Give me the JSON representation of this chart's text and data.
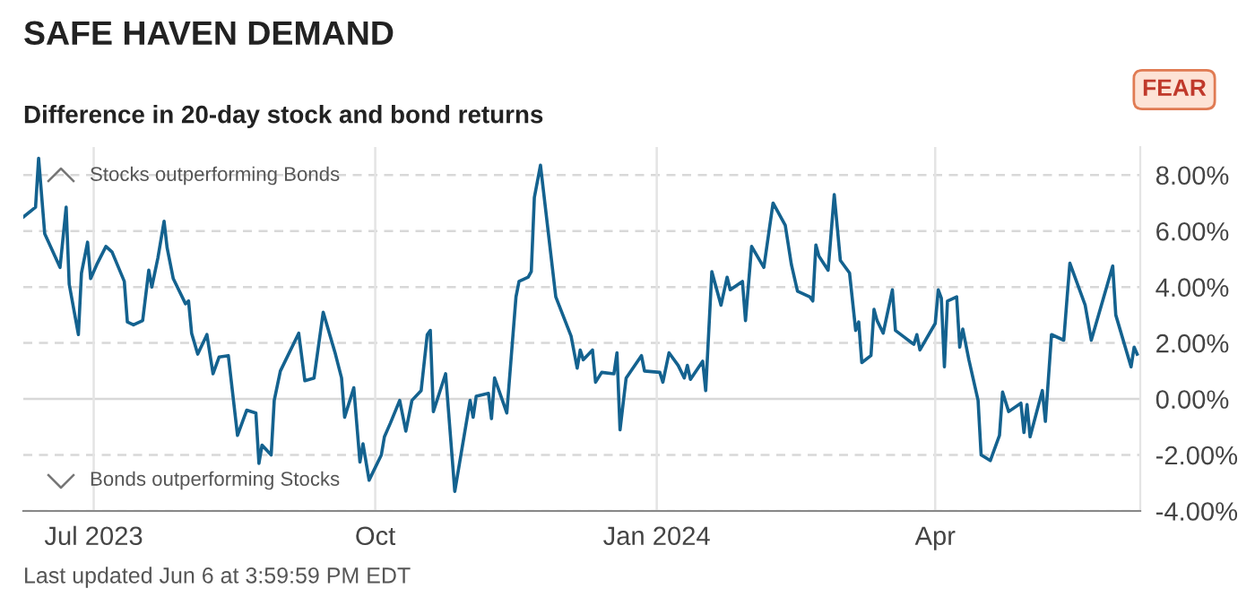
{
  "chart_data": {
    "type": "line",
    "title": "SAFE HAVEN DEMAND",
    "subtitle": "Difference in 20-day stock and bond returns",
    "annotations": [
      "FEAR",
      "Stocks outperforming Bonds",
      "Bonds outperforming Stocks",
      "Last updated Jun 6 at 3:59:59 PM EDT"
    ],
    "x": [
      "2023-06-08",
      "2023-06-12",
      "2023-06-13",
      "2023-06-15",
      "2023-06-20",
      "2023-06-22",
      "2023-06-23",
      "2023-06-26",
      "2023-06-27",
      "2023-06-29",
      "2023-06-30",
      "2023-07-02",
      "2023-07-05",
      "2023-07-07",
      "2023-07-11",
      "2023-07-12",
      "2023-07-14",
      "2023-07-17",
      "2023-07-19",
      "2023-07-20",
      "2023-07-22",
      "2023-07-24",
      "2023-07-25",
      "2023-07-27",
      "2023-07-31",
      "2023-08-01",
      "2023-08-02",
      "2023-08-04",
      "2023-08-07",
      "2023-08-09",
      "2023-08-11",
      "2023-08-14",
      "2023-08-17",
      "2023-08-20",
      "2023-08-23",
      "2023-08-24",
      "2023-08-25",
      "2023-08-28",
      "2023-08-29",
      "2023-08-31",
      "2023-09-06",
      "2023-09-08",
      "2023-09-11",
      "2023-09-14",
      "2023-09-18",
      "2023-09-20",
      "2023-09-21",
      "2023-09-24",
      "2023-09-26",
      "2023-09-27",
      "2023-09-29",
      "2023-10-03",
      "2023-10-04",
      "2023-10-06",
      "2023-10-09",
      "2023-10-11",
      "2023-10-13",
      "2023-10-16",
      "2023-10-18",
      "2023-10-19",
      "2023-10-20",
      "2023-10-24",
      "2023-10-27",
      "2023-11-01",
      "2023-11-02",
      "2023-11-03",
      "2023-11-07",
      "2023-11-08",
      "2023-11-09",
      "2023-11-13",
      "2023-11-16",
      "2023-11-17",
      "2023-11-20",
      "2023-11-21",
      "2023-11-22",
      "2023-11-24",
      "2023-11-29",
      "2023-12-04",
      "2023-12-06",
      "2023-12-07",
      "2023-12-08",
      "2023-12-11",
      "2023-12-12",
      "2023-12-14",
      "2023-12-18",
      "2023-12-19",
      "2023-12-20",
      "2023-12-22",
      "2023-12-27",
      "2023-12-28",
      "2024-01-02",
      "2024-01-03",
      "2024-01-05",
      "2024-01-08",
      "2024-01-10",
      "2024-01-11",
      "2024-01-12",
      "2024-01-16",
      "2024-01-17",
      "2024-01-19",
      "2024-01-22",
      "2024-01-24",
      "2024-01-25",
      "2024-01-29",
      "2024-01-30",
      "2024-02-01",
      "2024-02-05",
      "2024-02-08",
      "2024-02-12",
      "2024-02-14",
      "2024-02-16",
      "2024-02-20",
      "2024-02-21",
      "2024-02-22",
      "2024-02-23",
      "2024-02-26",
      "2024-02-28",
      "2024-03-01",
      "2024-03-04",
      "2024-03-06",
      "2024-03-07",
      "2024-03-08",
      "2024-03-11",
      "2024-03-12",
      "2024-03-13",
      "2024-03-15",
      "2024-03-18",
      "2024-03-19",
      "2024-03-22",
      "2024-03-25",
      "2024-03-26",
      "2024-03-27",
      "2024-04-01",
      "2024-04-02",
      "2024-04-03",
      "2024-04-04",
      "2024-04-05",
      "2024-04-08",
      "2024-04-09",
      "2024-04-10",
      "2024-04-12",
      "2024-04-15",
      "2024-04-16",
      "2024-04-19",
      "2024-04-22",
      "2024-04-23",
      "2024-04-25",
      "2024-04-29",
      "2024-04-30",
      "2024-05-01",
      "2024-05-02",
      "2024-05-06",
      "2024-05-07",
      "2024-05-09",
      "2024-05-13",
      "2024-05-14",
      "2024-05-15",
      "2024-05-20",
      "2024-05-22",
      "2024-05-29",
      "2024-05-30",
      "2024-06-04",
      "2024-06-05",
      "2024-06-06"
    ],
    "series": [
      {
        "color": "#14628f",
        "values": [
          6.5,
          6.85,
          8.6,
          5.9,
          4.7,
          6.85,
          4.1,
          2.3,
          4.5,
          5.6,
          4.3,
          4.8,
          5.45,
          5.25,
          4.2,
          2.75,
          2.65,
          2.8,
          4.6,
          4.0,
          5.05,
          6.35,
          5.4,
          4.3,
          3.4,
          3.5,
          2.35,
          1.6,
          2.3,
          0.9,
          1.5,
          1.55,
          -1.3,
          -0.4,
          -0.5,
          -2.3,
          -1.65,
          -2.0,
          -0.05,
          1.0,
          2.35,
          0.65,
          0.75,
          3.1,
          1.6,
          0.75,
          -0.65,
          0.4,
          -2.25,
          -1.6,
          -2.9,
          -2.0,
          -1.35,
          -0.85,
          -0.05,
          -1.15,
          -0.05,
          0.3,
          2.3,
          2.45,
          -0.45,
          0.9,
          -3.3,
          -0.05,
          -0.65,
          0.1,
          0.2,
          -0.7,
          0.75,
          -0.5,
          3.65,
          4.2,
          4.35,
          4.55,
          7.2,
          8.35,
          3.65,
          2.25,
          1.1,
          1.75,
          1.4,
          1.75,
          0.6,
          0.95,
          0.9,
          1.65,
          -1.1,
          0.75,
          1.55,
          1.0,
          0.95,
          0.6,
          1.65,
          1.2,
          0.75,
          1.2,
          0.7,
          1.35,
          0.3,
          4.55,
          3.35,
          4.35,
          3.9,
          4.2,
          2.8,
          5.45,
          4.7,
          7.0,
          6.2,
          4.8,
          3.85,
          3.65,
          3.5,
          5.5,
          5.1,
          4.6,
          7.3,
          4.95,
          4.5,
          2.45,
          2.75,
          1.3,
          1.55,
          3.2,
          2.8,
          2.35,
          3.9,
          2.45,
          2.2,
          1.95,
          2.3,
          1.75,
          2.7,
          3.9,
          3.6,
          1.15,
          3.5,
          3.65,
          1.85,
          2.5,
          1.4,
          -0.05,
          -2.0,
          -2.2,
          -1.3,
          0.25,
          -0.45,
          -0.15,
          -1.2,
          -0.2,
          -1.35,
          0.3,
          -0.8,
          2.3,
          2.1,
          3.5,
          4.85,
          3.35,
          2.1,
          4.75,
          3.0,
          1.15,
          1.85,
          1.6
        ]
      }
    ],
    "xlim": [
      "2023-06-08",
      "2024-06-07"
    ],
    "xticks": [
      {
        "value": "2023-07-01",
        "label": "Jul 2023"
      },
      {
        "value": "2023-10-01",
        "label": "Oct"
      },
      {
        "value": "2024-01-01",
        "label": "Jan 2024"
      },
      {
        "value": "2024-04-01",
        "label": "Apr"
      }
    ],
    "ylim": [
      -4,
      9
    ],
    "yticks": [
      {
        "value": -4,
        "label": "-4.00%"
      },
      {
        "value": -2,
        "label": "-2.00%"
      },
      {
        "value": 0,
        "label": "0.00%"
      },
      {
        "value": 2,
        "label": "2.00%"
      },
      {
        "value": 4,
        "label": "4.00%"
      },
      {
        "value": 6,
        "label": "6.00%"
      },
      {
        "value": 8,
        "label": "8.00%"
      }
    ],
    "grid": true,
    "marker": "none",
    "line_style": "solid",
    "legend": false
  }
}
